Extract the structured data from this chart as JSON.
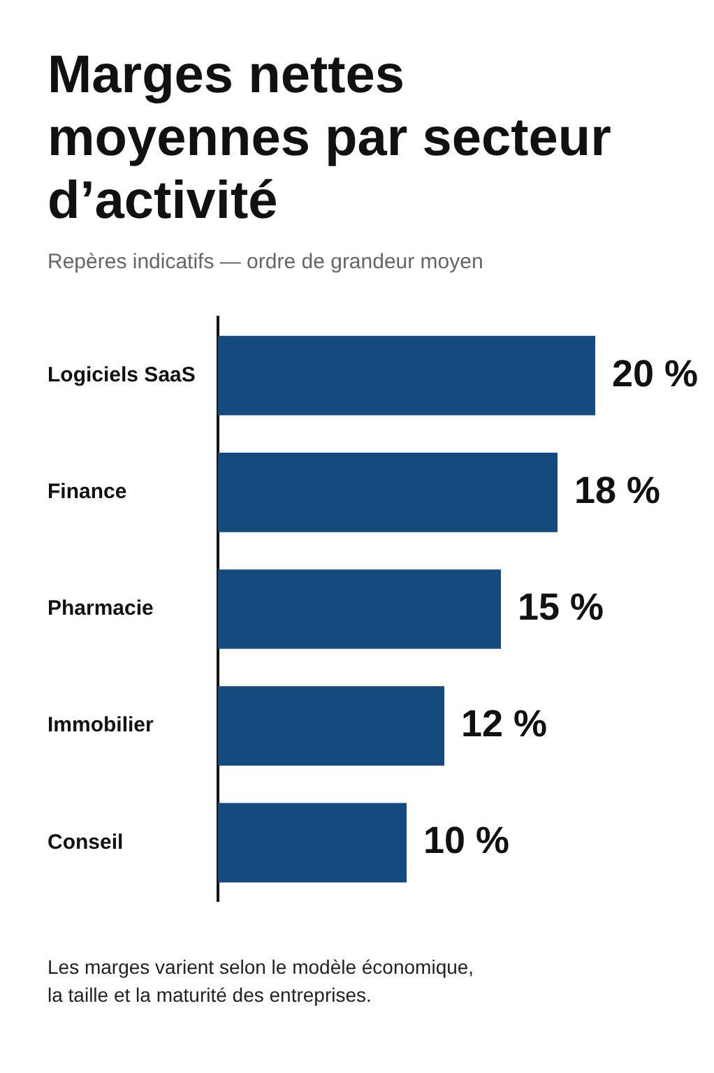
{
  "chart_data": {
    "type": "bar",
    "orientation": "horizontal",
    "title": "Marges nettes moyennes par secteur d’activité",
    "subtitle": "Repères indicatifs — ordre de grandeur moyen",
    "categories": [
      "Logiciels SaaS",
      "Finance",
      "Pharmacie",
      "Immobilier",
      "Conseil"
    ],
    "values": [
      20,
      18,
      15,
      12,
      10
    ],
    "value_labels": [
      "20 %",
      "18 %",
      "15 %",
      "12 %",
      "10 %"
    ],
    "color": "#154a7e",
    "annotations": [
      "Les marges varient selon le modèle économique, la taille et la maturité des entreprises."
    ]
  }
}
